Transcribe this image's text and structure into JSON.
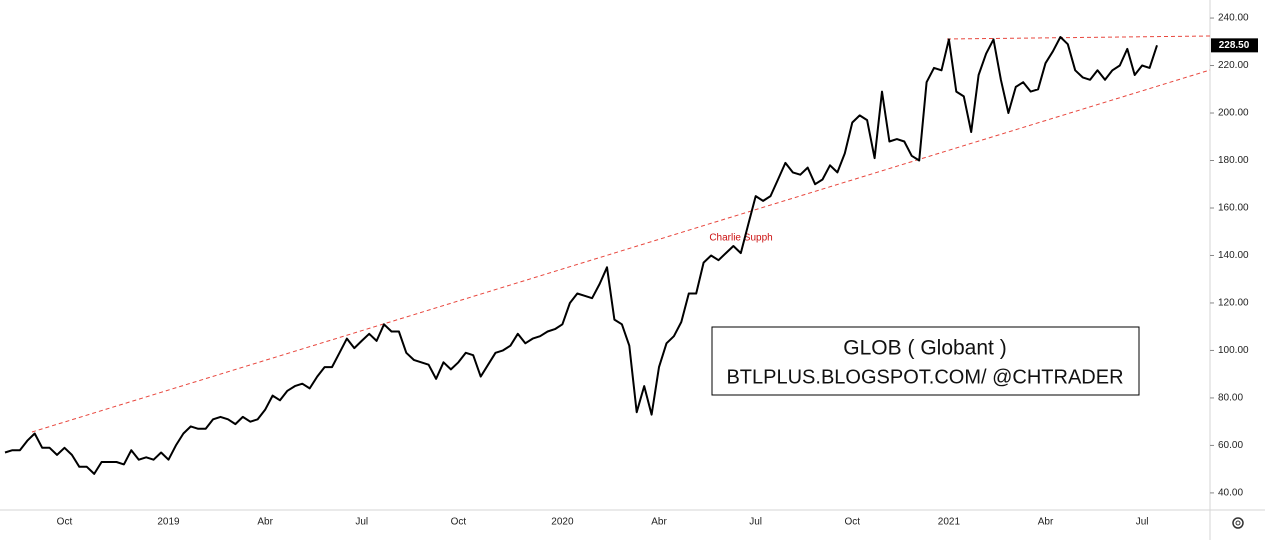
{
  "chart_data": {
    "type": "line",
    "title": "GLOB ( Globant )",
    "subtitle": "BTLPLUS.BLOGSPOT.COM/ @CHTRADER",
    "annotation": "Charlie Supph",
    "last_price_label": "228.50",
    "color": "#000000",
    "categories": [
      null,
      null,
      null,
      null,
      null,
      null,
      null,
      null,
      "Oct",
      null,
      null,
      null,
      null,
      null,
      null,
      null,
      null,
      null,
      null,
      null,
      null,
      null,
      "2019",
      null,
      null,
      null,
      null,
      null,
      null,
      null,
      null,
      null,
      null,
      null,
      null,
      "Abr",
      null,
      null,
      null,
      null,
      null,
      null,
      null,
      null,
      null,
      null,
      null,
      null,
      "Jul",
      null,
      null,
      null,
      null,
      null,
      null,
      null,
      null,
      null,
      null,
      null,
      null,
      "Oct",
      null,
      null,
      null,
      null,
      null,
      null,
      null,
      null,
      null,
      null,
      null,
      null,
      null,
      "2020",
      null,
      null,
      null,
      null,
      null,
      null,
      null,
      null,
      null,
      null,
      null,
      null,
      "Abr",
      null,
      null,
      null,
      null,
      null,
      null,
      null,
      null,
      null,
      null,
      null,
      null,
      "Jul",
      null,
      null,
      null,
      null,
      null,
      null,
      null,
      null,
      null,
      null,
      null,
      null,
      "Oct",
      null,
      null,
      null,
      null,
      null,
      null,
      null,
      null,
      null,
      null,
      null,
      null,
      "2021",
      null,
      null,
      null,
      null,
      null,
      null,
      null,
      null,
      null,
      null,
      null,
      null,
      "Abr",
      null,
      null,
      null,
      null,
      null,
      null,
      null,
      null,
      null,
      null,
      null,
      null,
      "Jul",
      null,
      null
    ],
    "values": [
      57,
      58,
      58,
      62,
      65,
      59,
      59,
      56,
      59,
      56,
      51,
      51,
      48,
      53,
      53,
      53,
      52,
      58,
      54,
      55,
      54,
      57,
      54,
      60,
      65,
      68,
      67,
      67,
      71,
      72,
      71,
      69,
      72,
      70,
      71,
      75,
      81,
      79,
      83,
      85,
      86,
      84,
      89,
      93,
      93,
      99,
      105,
      101,
      104,
      107,
      104,
      111,
      108,
      108,
      99,
      96,
      95,
      94,
      88,
      95,
      92,
      95,
      99,
      98,
      89,
      94,
      99,
      100,
      102,
      107,
      103,
      105,
      106,
      108,
      109,
      111,
      120,
      124,
      123,
      122,
      128,
      135,
      113,
      111,
      102,
      74,
      85,
      73,
      93,
      103,
      106,
      112,
      124,
      124,
      137,
      140,
      138,
      141,
      144,
      141,
      153,
      165,
      163,
      165,
      172,
      179,
      175,
      174,
      177,
      170,
      172,
      178,
      175,
      183,
      196,
      199,
      197,
      181,
      209,
      188,
      189,
      188,
      182,
      180,
      213,
      219,
      218,
      231,
      209,
      207,
      192,
      216,
      225,
      231,
      214,
      200,
      211,
      213,
      209,
      210,
      221,
      226,
      232,
      229,
      218,
      215,
      214,
      218,
      214,
      218,
      220,
      227,
      216,
      220,
      219,
      228.5
    ],
    "ylim": [
      32.8,
      247.6
    ],
    "yticks": [
      {
        "value": 40,
        "label": "40.00"
      },
      {
        "value": 60,
        "label": "60.00"
      },
      {
        "value": 80,
        "label": "80.00"
      },
      {
        "value": 100,
        "label": "100.00"
      },
      {
        "value": 120,
        "label": "120.00"
      },
      {
        "value": 140,
        "label": "140.00"
      },
      {
        "value": 160,
        "label": "160.00"
      },
      {
        "value": 180,
        "label": "180.00"
      },
      {
        "value": 200,
        "label": "200.00"
      },
      {
        "value": 220,
        "label": "220.00"
      },
      {
        "value": 240,
        "label": "240.00"
      }
    ]
  }
}
